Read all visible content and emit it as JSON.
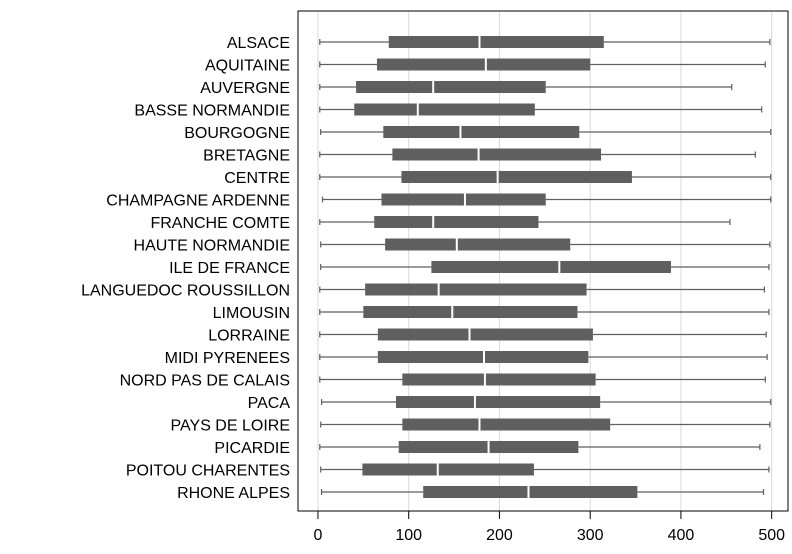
{
  "chart_data": {
    "type": "boxplot",
    "orientation": "horizontal",
    "title": "",
    "xlabel": "",
    "ylabel": "",
    "xlim": [
      -22,
      518
    ],
    "xticks": [
      0,
      100,
      200,
      300,
      400,
      500
    ],
    "grid": true,
    "colors": {
      "box": "#5f5f5f",
      "median": "#ffffff",
      "whisker": "#5f5f5f",
      "grid": "#d9d9d9",
      "axis": "#000000"
    },
    "categories": [
      "ALSACE",
      "AQUITAINE",
      "AUVERGNE",
      "BASSE NORMANDIE",
      "BOURGOGNE",
      "BRETAGNE",
      "CENTRE",
      "CHAMPAGNE ARDENNE",
      "FRANCHE COMTE",
      "HAUTE NORMANDIE",
      "ILE DE FRANCE",
      "LANGUEDOC ROUSSILLON",
      "LIMOUSIN",
      "LORRAINE",
      "MIDI PYRENEES",
      "NORD PAS DE CALAIS",
      "PACA",
      "PAYS DE LOIRE",
      "PICARDIE",
      "POITOU CHARENTES",
      "RHONE ALPES"
    ],
    "boxes": [
      {
        "min": 2,
        "q1": 78,
        "median": 178,
        "q3": 315,
        "max": 498
      },
      {
        "min": 2,
        "q1": 65,
        "median": 185,
        "q3": 300,
        "max": 493
      },
      {
        "min": 2,
        "q1": 42,
        "median": 127,
        "q3": 251,
        "max": 456
      },
      {
        "min": 2,
        "q1": 40,
        "median": 110,
        "q3": 239,
        "max": 489
      },
      {
        "min": 3,
        "q1": 72,
        "median": 157,
        "q3": 288,
        "max": 499
      },
      {
        "min": 2,
        "q1": 82,
        "median": 177,
        "q3": 312,
        "max": 482
      },
      {
        "min": 2,
        "q1": 92,
        "median": 198,
        "q3": 346,
        "max": 499
      },
      {
        "min": 5,
        "q1": 70,
        "median": 162,
        "q3": 251,
        "max": 499
      },
      {
        "min": 2,
        "q1": 62,
        "median": 127,
        "q3": 243,
        "max": 454
      },
      {
        "min": 3,
        "q1": 74,
        "median": 153,
        "q3": 278,
        "max": 498
      },
      {
        "min": 3,
        "q1": 125,
        "median": 266,
        "q3": 389,
        "max": 497
      },
      {
        "min": 2,
        "q1": 52,
        "median": 133,
        "q3": 296,
        "max": 492
      },
      {
        "min": 2,
        "q1": 50,
        "median": 148,
        "q3": 286,
        "max": 497
      },
      {
        "min": 2,
        "q1": 66,
        "median": 167,
        "q3": 303,
        "max": 494
      },
      {
        "min": 2,
        "q1": 66,
        "median": 183,
        "q3": 298,
        "max": 495
      },
      {
        "min": 2,
        "q1": 93,
        "median": 184,
        "q3": 306,
        "max": 493
      },
      {
        "min": 4,
        "q1": 86,
        "median": 173,
        "q3": 311,
        "max": 499
      },
      {
        "min": 3,
        "q1": 93,
        "median": 178,
        "q3": 322,
        "max": 498
      },
      {
        "min": 2,
        "q1": 89,
        "median": 188,
        "q3": 287,
        "max": 487
      },
      {
        "min": 3,
        "q1": 49,
        "median": 132,
        "q3": 238,
        "max": 497
      },
      {
        "min": 4,
        "q1": 116,
        "median": 232,
        "q3": 352,
        "max": 491
      }
    ]
  }
}
